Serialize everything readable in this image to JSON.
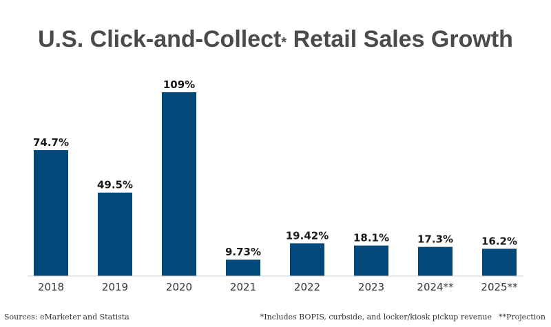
{
  "chart_data": {
    "type": "bar",
    "title": "U.S. Click-and-Collect",
    "title_marker": "*",
    "title_suffix": " Retail Sales Growth",
    "categories": [
      "2018",
      "2019",
      "2020",
      "2021",
      "2022",
      "2023",
      "2024**",
      "2025**"
    ],
    "values": [
      74.7,
      49.5,
      109,
      9.73,
      19.42,
      18.1,
      17.3,
      16.2
    ],
    "value_labels": [
      "74.7%",
      "49.5%",
      "109%",
      "9.73%",
      "19.42%",
      "18.1%",
      "17.3%",
      "16.2%"
    ],
    "unit": "%",
    "ylim": [
      0,
      109
    ],
    "grid": false,
    "legend": "none",
    "bar_color": "#00497a"
  },
  "footer": {
    "sources": "Sources: eMarketer and Statista",
    "note_includes": "*Includes BOPIS, curbside, and locker/kiosk pickup revenue",
    "note_projection": "**Projection"
  }
}
